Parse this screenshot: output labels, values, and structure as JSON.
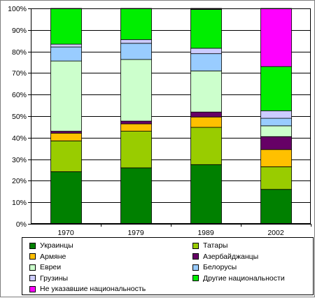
{
  "chart_data": {
    "type": "bar",
    "stacked": true,
    "percent_stacked": true,
    "categories": [
      "1970",
      "1979",
      "1989",
      "2002"
    ],
    "y_ticks": [
      "0%",
      "10%",
      "20%",
      "30%",
      "40%",
      "50%",
      "60%",
      "70%",
      "80%",
      "90%",
      "100%"
    ],
    "ylim": [
      0,
      100
    ],
    "grid": true,
    "legend_position": "bottom",
    "series": [
      {
        "name": "Украинцы",
        "color": "#008000",
        "values": [
          24.2,
          26.0,
          27.5,
          16.0
        ]
      },
      {
        "name": "Татары",
        "color": "#99cc00",
        "values": [
          14.3,
          17.0,
          17.3,
          10.5
        ]
      },
      {
        "name": "Армяне",
        "color": "#ffc000",
        "values": [
          3.6,
          3.4,
          4.8,
          8.0
        ]
      },
      {
        "name": "Азербайджанцы",
        "color": "#660066",
        "values": [
          0.9,
          1.3,
          2.3,
          6.0
        ]
      },
      {
        "name": "Евреи",
        "color": "#ccffcc",
        "values": [
          32.6,
          28.6,
          19.1,
          5.0
        ]
      },
      {
        "name": "Белорусы",
        "color": "#99ccff",
        "values": [
          6.5,
          7.5,
          8.0,
          3.5
        ]
      },
      {
        "name": "Грузины",
        "color": "#ccccff",
        "values": [
          1.3,
          1.7,
          2.5,
          3.5
        ]
      },
      {
        "name": "Другие национальности",
        "color": "#00ee00",
        "values": [
          16.6,
          14.5,
          18.0,
          20.5
        ]
      },
      {
        "name": "Не указавшие национальность",
        "color": "#ff00ff",
        "values": [
          0,
          0,
          0.5,
          27.0
        ]
      }
    ]
  }
}
